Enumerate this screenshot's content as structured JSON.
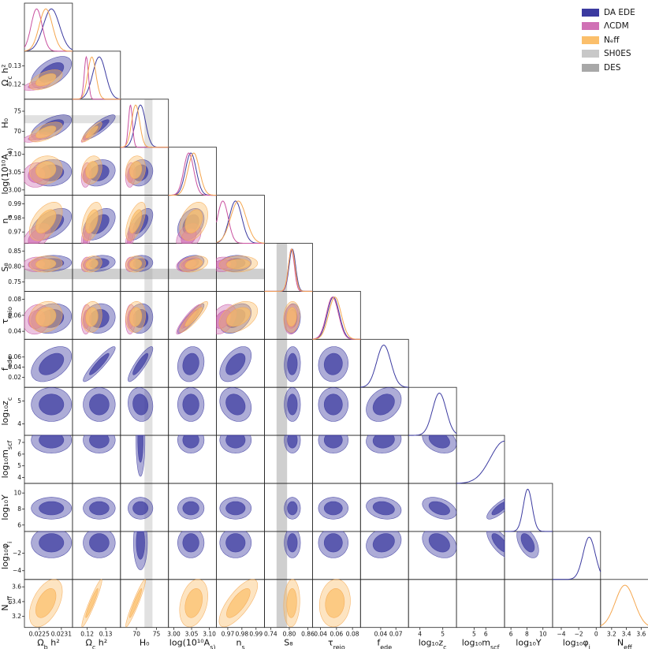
{
  "chart_data": {
    "type": "triangle-corner",
    "parameters": [
      {
        "key": "omega_b",
        "label": "Ω_b h²",
        "range": [
          0.0221,
          0.0234
        ],
        "ticks": [
          0.0225,
          0.0231
        ],
        "tick_labels": [
          "0.0225",
          "0.0231"
        ]
      },
      {
        "key": "omega_cdm",
        "label": "Ω_c h²",
        "range": [
          0.112,
          0.138
        ],
        "ticks": [
          0.12,
          0.13
        ],
        "tick_labels": [
          "0.12",
          "0.13"
        ]
      },
      {
        "key": "H0",
        "label": "H₀",
        "range": [
          66,
          78
        ],
        "ticks": [
          70,
          75
        ],
        "tick_labels": [
          "70",
          "75"
        ]
      },
      {
        "key": "lnA",
        "label": "log(10¹⁰A_s)",
        "range": [
          2.985,
          3.12
        ],
        "ticks": [
          3.0,
          3.05,
          3.1
        ],
        "tick_labels": [
          "3.00",
          "3.05",
          "3.10"
        ]
      },
      {
        "key": "ns",
        "label": "n_s",
        "range": [
          0.962,
          0.996
        ],
        "ticks": [
          0.97,
          0.98,
          0.99
        ],
        "tick_labels": [
          "0.97",
          "0.98",
          "0.99"
        ]
      },
      {
        "key": "S8",
        "label": "S₈",
        "range": [
          0.72,
          0.875
        ],
        "ticks": [
          0.75,
          0.8,
          0.85
        ],
        "tick_labels": [
          "0.75",
          "0.80",
          "0.85"
        ],
        "xticks": [
          0.74,
          0.8,
          0.86
        ],
        "xtick_labels": [
          "0.74",
          "0.80",
          "0.86"
        ]
      },
      {
        "key": "tau",
        "label": "τ_reio",
        "range": [
          0.03,
          0.09
        ],
        "ticks": [
          0.04,
          0.06,
          0.08
        ],
        "tick_labels": [
          "0.04",
          "0.06",
          "0.08"
        ]
      },
      {
        "key": "fede",
        "label": "f_ede",
        "range": [
          0.0,
          0.095
        ],
        "ticks": [
          0.02,
          0.04,
          0.06
        ],
        "tick_labels": [
          "0.02",
          "0.04",
          "0.06"
        ],
        "xticks": [
          0.04,
          0.07
        ],
        "xtick_labels": [
          "0.04",
          "0.07"
        ]
      },
      {
        "key": "log10zc",
        "label": "log₁₀z_c",
        "range": [
          3.5,
          5.6
        ],
        "ticks": [
          4,
          5
        ],
        "tick_labels": [
          "4",
          "5"
        ]
      },
      {
        "key": "log10mscf",
        "label": "log₁₀m_scf",
        "range": [
          3.5,
          7.6
        ],
        "ticks": [
          4,
          5,
          6,
          7
        ],
        "tick_labels": [
          "4",
          "5",
          "6",
          "7"
        ],
        "xticks": [
          5,
          6
        ],
        "xtick_labels": [
          "5",
          "6"
        ]
      },
      {
        "key": "log10Y",
        "label": "log₁₀Y",
        "range": [
          5.2,
          11.2
        ],
        "ticks": [
          6,
          8,
          10
        ],
        "tick_labels": [
          "6",
          "8",
          "10"
        ]
      },
      {
        "key": "log10phi",
        "label": "log₁₀φ_i",
        "range": [
          -5,
          0.5
        ],
        "ticks": [
          -4,
          -2
        ],
        "tick_labels": [
          "−4",
          "−2"
        ],
        "xticks": [
          -4,
          -2,
          0
        ],
        "xtick_labels": [
          "−4",
          "−2",
          "0"
        ]
      },
      {
        "key": "Neff",
        "label": "N_eff",
        "range": [
          3.05,
          3.7
        ],
        "ticks": [
          3.2,
          3.4,
          3.6
        ],
        "tick_labels": [
          "3.2",
          "3.4",
          "3.6"
        ]
      }
    ],
    "series": [
      {
        "name": "DA EDE",
        "color": "#3b3aa0",
        "fill": "#3b3aa0",
        "params": [
          "omega_b",
          "omega_cdm",
          "H0",
          "lnA",
          "ns",
          "S8",
          "tau",
          "fede",
          "log10zc",
          "log10mscf",
          "log10Y",
          "log10phi"
        ],
        "mean": {
          "omega_b": 0.02283,
          "omega_cdm": 0.1265,
          "H0": 71.0,
          "lnA": 3.048,
          "ns": 0.9755,
          "S8": 0.81,
          "tau": 0.056,
          "fede": 0.046,
          "log10zc": 4.85,
          "log10mscf": 7.2,
          "log10Y": 8.1,
          "log10phi": -0.8
        },
        "sigma": {
          "omega_b": 0.00022,
          "omega_cdm": 0.0035,
          "H0": 1.25,
          "lnA": 0.015,
          "ns": 0.0045,
          "S8": 0.0105,
          "tau": 0.0075,
          "fede": 0.014,
          "log10zc": 0.3,
          "log10mscf": 0.45,
          "log10Y": 0.55,
          "log10phi": 0.7
        }
      },
      {
        "name": "ΛCDM",
        "color": "#c9509f",
        "fill": "#d071b5",
        "params": [
          "omega_b",
          "omega_cdm",
          "H0",
          "lnA",
          "ns",
          "S8",
          "tau"
        ],
        "mean": {
          "omega_b": 0.02243,
          "omega_cdm": 0.1195,
          "H0": 68.5,
          "lnA": 3.042,
          "ns": 0.9665,
          "S8": 0.807,
          "tau": 0.055
        },
        "sigma": {
          "omega_b": 0.00015,
          "omega_cdm": 0.0011,
          "H0": 0.5,
          "lnA": 0.014,
          "ns": 0.0038,
          "S8": 0.0095,
          "tau": 0.0075
        }
      },
      {
        "name": "N_eff",
        "color": "#f5a64e",
        "fill": "#fbbf6b",
        "params": [
          "omega_b",
          "omega_cdm",
          "H0",
          "lnA",
          "ns",
          "S8",
          "tau",
          "Neff"
        ],
        "mean": {
          "omega_b": 0.02268,
          "omega_cdm": 0.1225,
          "H0": 69.8,
          "lnA": 3.056,
          "ns": 0.9775,
          "S8": 0.808,
          "tau": 0.058,
          "Neff": 3.38
        },
        "sigma": {
          "omega_b": 0.00018,
          "omega_cdm": 0.0022,
          "H0": 1.0,
          "lnA": 0.016,
          "ns": 0.0055,
          "S8": 0.0105,
          "tau": 0.0078,
          "Neff": 0.13
        }
      },
      {
        "name": "SH0ES",
        "color": "#c8c8c8",
        "param": "H0",
        "band_center": 73.0,
        "band_halfwidth": 1.0
      },
      {
        "name": "DES",
        "color": "#a8a8a8",
        "param": "S8",
        "band_center": 0.776,
        "band_halfwidth": 0.017
      }
    ],
    "correlations": {
      "omega_b|omega_cdm": 0.55,
      "omega_b|H0": 0.6,
      "omega_b|lnA": 0.1,
      "omega_b|ns": 0.5,
      "omega_b|S8": 0.1,
      "omega_b|tau": 0.15,
      "omega_cdm|H0": 0.85,
      "omega_cdm|lnA": 0.2,
      "omega_cdm|ns": 0.45,
      "omega_cdm|S8": 0.2,
      "omega_cdm|tau": 0.1,
      "H0|lnA": 0.15,
      "H0|ns": 0.6,
      "H0|S8": 0.1,
      "H0|tau": 0.1,
      "lnA|ns": 0.35,
      "lnA|S8": 0.3,
      "lnA|tau": 0.9,
      "ns|S8": 0.1,
      "ns|tau": 0.4,
      "S8|tau": 0.1,
      "omega_b|fede": 0.45,
      "omega_cdm|fede": 0.92,
      "H0|fede": 0.88,
      "lnA|fede": 0.15,
      "ns|fede": 0.5,
      "S8|fede": 0.05,
      "tau|fede": 0.05,
      "fede|log10zc": 0.3,
      "fede|log10mscf": 0.1,
      "fede|log10Y": -0.2,
      "fede|log10phi": 0.2,
      "log10zc|log10mscf": -0.3,
      "log10zc|log10Y": -0.4,
      "log10zc|log10phi": -0.3,
      "log10mscf|log10Y": 0.8,
      "log10mscf|log10phi": -0.7,
      "log10Y|log10phi": -0.5,
      "H0|log10zc": -0.1,
      "ns|log10zc": -0.2,
      "omega_b|Neff": 0.5,
      "omega_cdm|Neff": 0.95,
      "H0|Neff": 0.95,
      "lnA|Neff": 0.3,
      "ns|Neff": 0.75,
      "S8|Neff": 0.1,
      "tau|Neff": 0.1
    },
    "legend_location": "top-right"
  }
}
